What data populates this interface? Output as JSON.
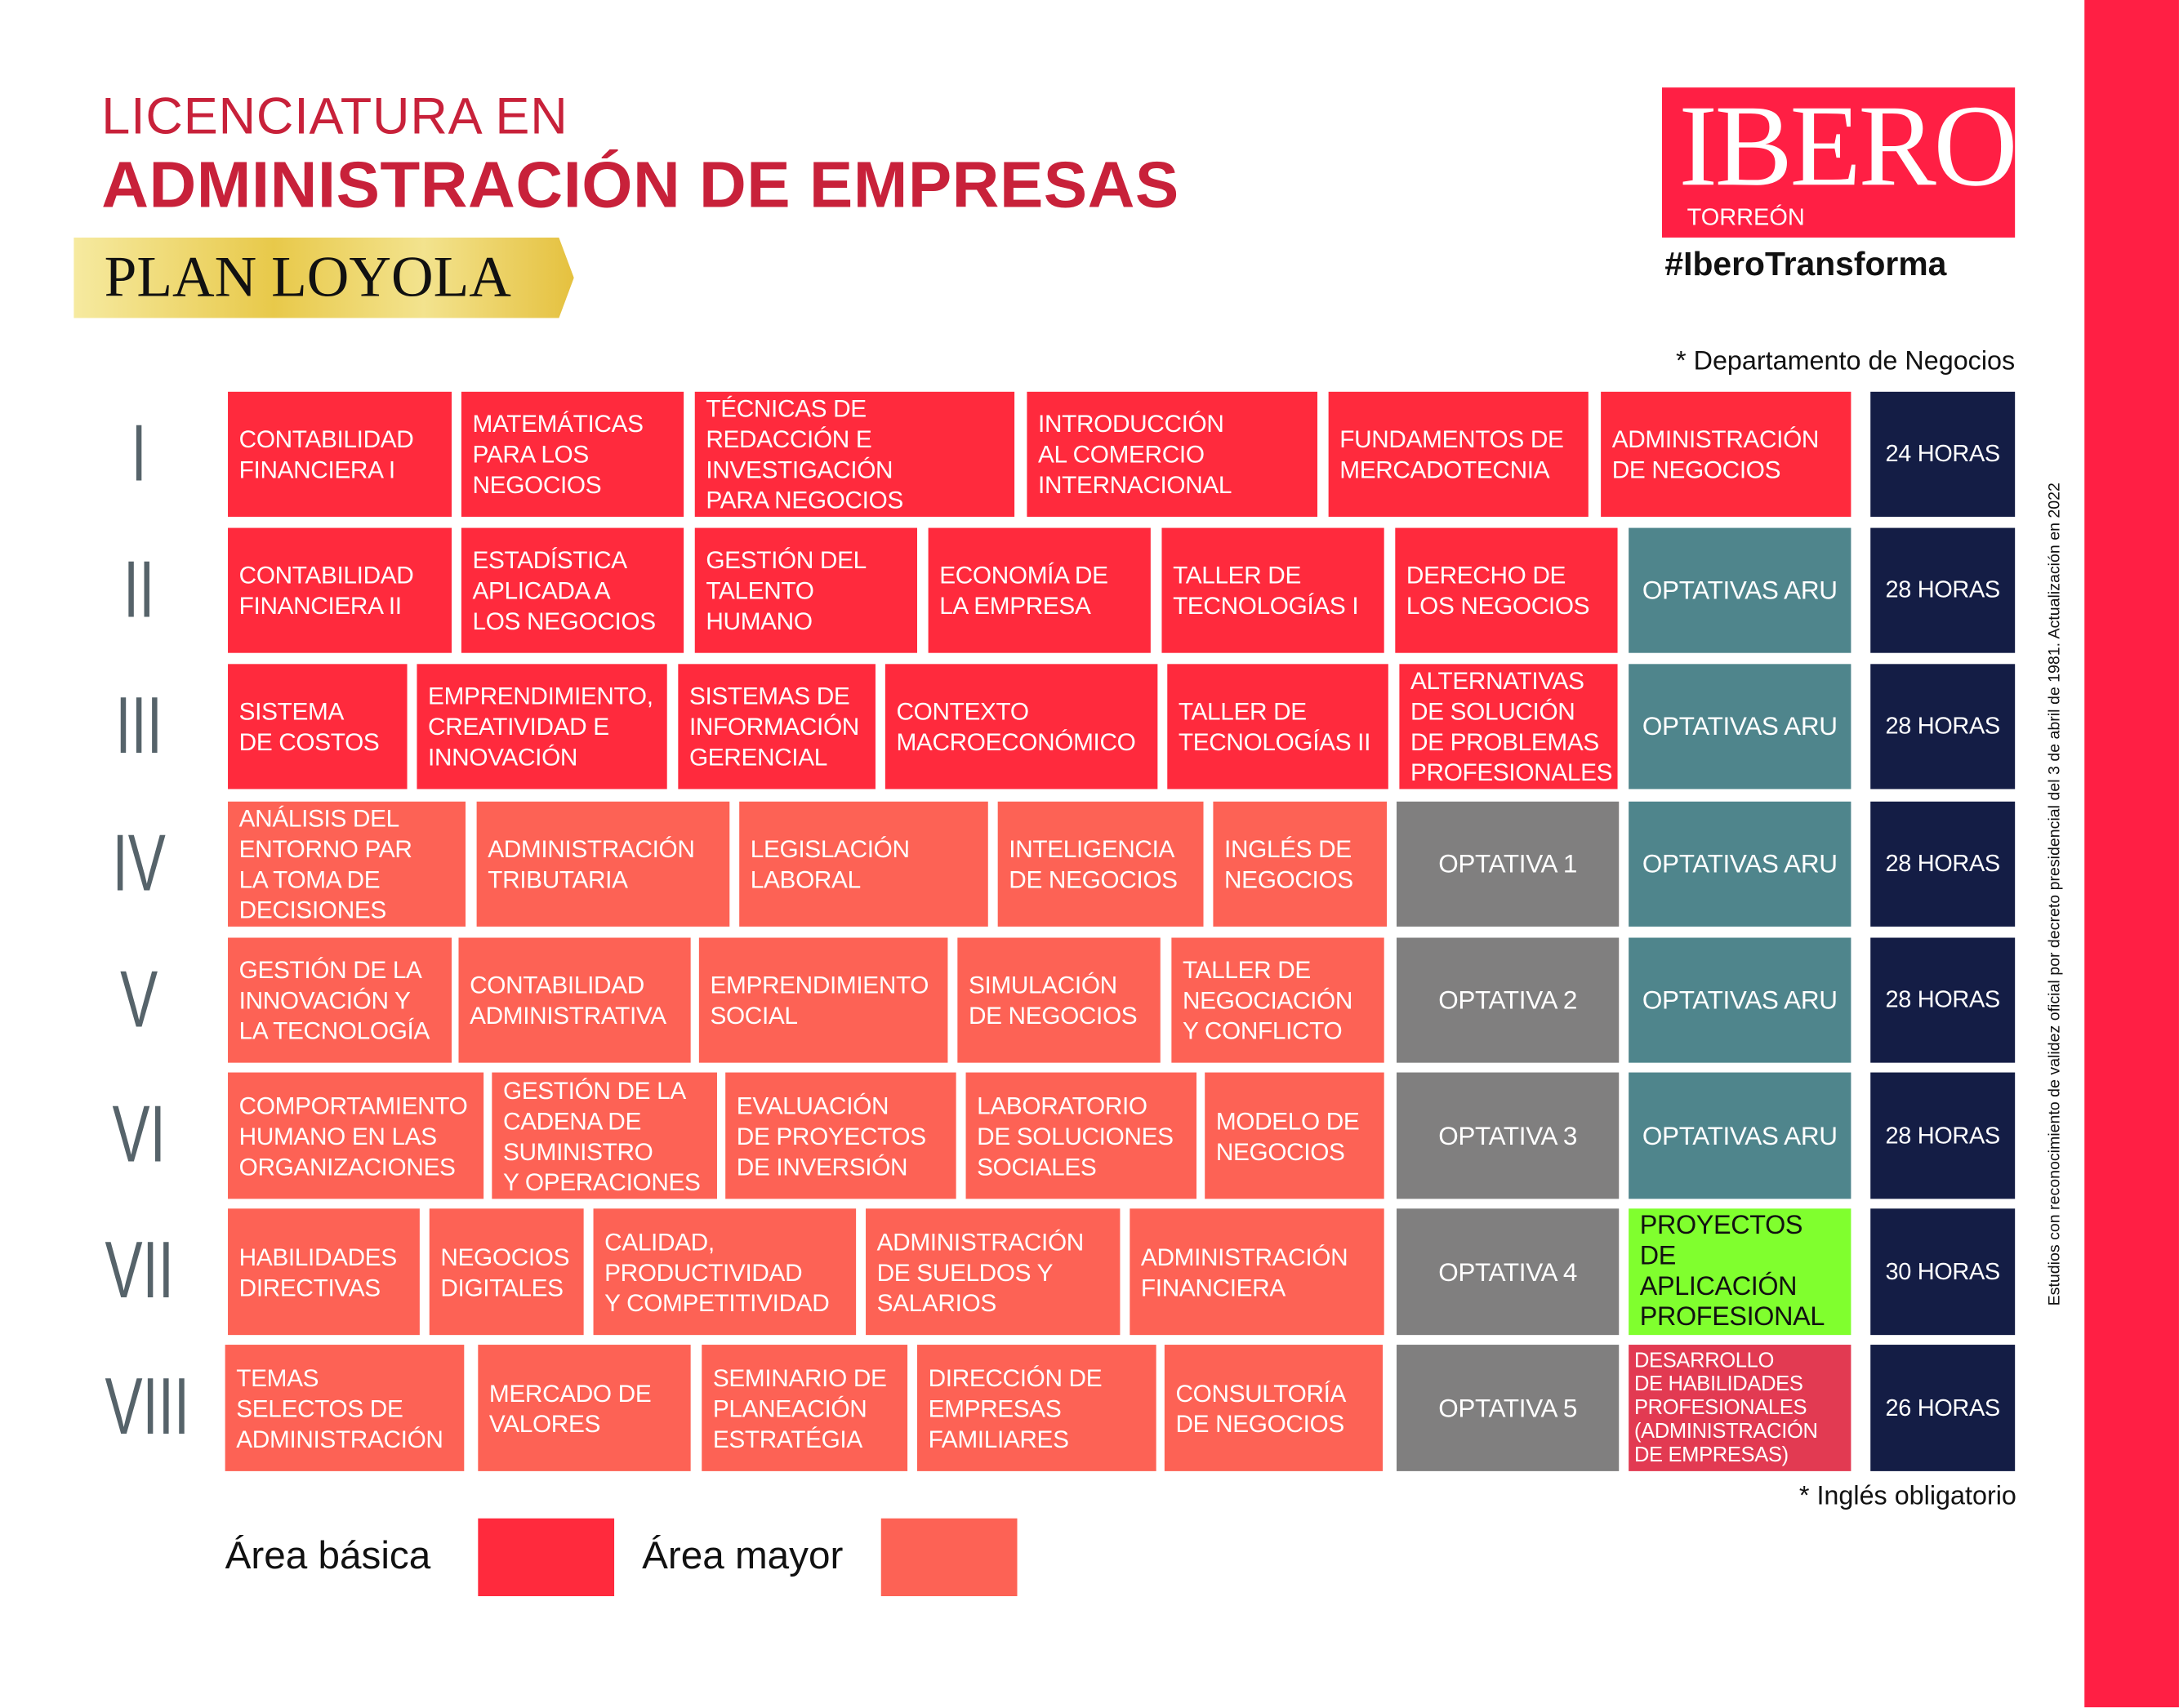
{
  "header": {
    "title_line1": "LICENCIATURA EN",
    "title_line2": "ADMINISTRACIÓN DE EMPRESAS",
    "plan": "PLAN LOYOLA",
    "logo_text": "IBERO",
    "logo_subtext": "TORREÓN",
    "hashtag": "#IberoTransforma"
  },
  "notes": {
    "department": "* Departamento de Negocios",
    "english": "* Inglés obligatorio",
    "validity": "Estudios con reconocimiento de validez oficial por decreto presidencial del 3 de abril de 1981. Actualización en 2022"
  },
  "colors": {
    "basic": "#ff2a3d",
    "major": "#fd6255",
    "optativa": "#807f7f",
    "aru": "#4f858c",
    "hours": "#141d45",
    "project": "#80ff2e",
    "development": "#e23a52",
    "numeral": "#56636a",
    "brand": "#ff1f44"
  },
  "rows": [
    {
      "numeral": "I",
      "hours": "24 HORAS",
      "courses": [
        {
          "label": "CONTABILIDAD\nFINANCIERA I",
          "area": "basic"
        },
        {
          "label": "MATEMÁTICAS\nPARA LOS\nNEGOCIOS",
          "area": "basic"
        },
        {
          "label": "TÉCNICAS DE\nREDACCIÓN E\nINVESTIGACIÓN\nPARA NEGOCIOS",
          "area": "basic"
        },
        {
          "label": "INTRODUCCIÓN\nAL COMERCIO\nINTERNACIONAL",
          "area": "basic"
        },
        {
          "label": "FUNDAMENTOS DE\nMERCADOTECNIA",
          "area": "basic"
        },
        {
          "label": "ADMINISTRACIÓN\nDE NEGOCIOS",
          "area": "basic"
        }
      ]
    },
    {
      "numeral": "II",
      "hours": "28 HORAS",
      "courses": [
        {
          "label": "CONTABILIDAD\nFINANCIERA II",
          "area": "basic"
        },
        {
          "label": "ESTADÍSTICA\nAPLICADA A\nLOS NEGOCIOS",
          "area": "basic"
        },
        {
          "label": "GESTIÓN DEL\nTALENTO\nHUMANO",
          "area": "basic"
        },
        {
          "label": "ECONOMÍA DE\nLA EMPRESA",
          "area": "basic"
        },
        {
          "label": "TALLER DE\nTECNOLOGÍAS I",
          "area": "basic"
        },
        {
          "label": "DERECHO DE\nLOS NEGOCIOS",
          "area": "basic"
        },
        {
          "label": "OPTATIVAS ARU",
          "area": "aru"
        }
      ]
    },
    {
      "numeral": "III",
      "hours": "28 HORAS",
      "courses": [
        {
          "label": "SISTEMA\nDE COSTOS",
          "area": "basic"
        },
        {
          "label": "EMPRENDIMIENTO,\nCREATIVIDAD E\nINNOVACIÓN",
          "area": "basic"
        },
        {
          "label": "SISTEMAS DE\nINFORMACIÓN\nGERENCIAL",
          "area": "basic"
        },
        {
          "label": "CONTEXTO\nMACROECONÓMICO",
          "area": "basic"
        },
        {
          "label": "TALLER DE\nTECNOLOGÍAS II",
          "area": "basic"
        },
        {
          "label": "ALTERNATIVAS\nDE SOLUCIÓN\nDE PROBLEMAS\nPROFESIONALES",
          "area": "basic"
        },
        {
          "label": "OPTATIVAS ARU",
          "area": "aru"
        }
      ]
    },
    {
      "numeral": "IV",
      "hours": "28 HORAS",
      "courses": [
        {
          "label": "ANÁLISIS DEL\nENTORNO PAR\n LA TOMA DE\nDECISIONES",
          "area": "major"
        },
        {
          "label": "ADMINISTRACIÓN\nTRIBUTARIA",
          "area": "major"
        },
        {
          "label": "LEGISLACIÓN\nLABORAL",
          "area": "major"
        },
        {
          "label": "INTELIGENCIA\nDE NEGOCIOS",
          "area": "major"
        },
        {
          "label": "INGLÉS DE\nNEGOCIOS",
          "area": "major"
        },
        {
          "label": "OPTATIVA 1",
          "area": "optativa"
        },
        {
          "label": "OPTATIVAS ARU",
          "area": "aru"
        }
      ]
    },
    {
      "numeral": "V",
      "hours": "28 HORAS",
      "courses": [
        {
          "label": "GESTIÓN DE LA\nINNOVACIÓN Y\nLA TECNOLOGÍA",
          "area": "major"
        },
        {
          "label": "CONTABILIDAD\nADMINISTRATIVA",
          "area": "major"
        },
        {
          "label": "EMPRENDIMIENTO\nSOCIAL",
          "area": "major"
        },
        {
          "label": "SIMULACIÓN\nDE NEGOCIOS",
          "area": "major"
        },
        {
          "label": "TALLER DE\nNEGOCIACIÓN\nY CONFLICTO",
          "area": "major"
        },
        {
          "label": "OPTATIVA 2",
          "area": "optativa"
        },
        {
          "label": "OPTATIVAS ARU",
          "area": "aru"
        }
      ]
    },
    {
      "numeral": "VI",
      "hours": "28 HORAS",
      "courses": [
        {
          "label": "COMPORTAMIENTO\nHUMANO EN LAS\nORGANIZACIONES",
          "area": "major"
        },
        {
          "label": "GESTIÓN DE LA\nCADENA DE\nSUMINISTRO\nY OPERACIONES",
          "area": "major"
        },
        {
          "label": "EVALUACIÓN\nDE PROYECTOS\nDE INVERSIÓN",
          "area": "major"
        },
        {
          "label": "LABORATORIO\nDE SOLUCIONES\nSOCIALES",
          "area": "major"
        },
        {
          "label": "MODELO DE\nNEGOCIOS",
          "area": "major"
        },
        {
          "label": "OPTATIVA 3",
          "area": "optativa"
        },
        {
          "label": "OPTATIVAS ARU",
          "area": "aru"
        }
      ]
    },
    {
      "numeral": "VII",
      "hours": "30 HORAS",
      "courses": [
        {
          "label": "HABILIDADES\nDIRECTIVAS",
          "area": "major"
        },
        {
          "label": "NEGOCIOS\nDIGITALES",
          "area": "major"
        },
        {
          "label": "CALIDAD,\nPRODUCTIVIDAD\nY COMPETITIVIDAD",
          "area": "major"
        },
        {
          "label": "ADMINISTRACIÓN\nDE SUELDOS Y\nSALARIOS",
          "area": "major"
        },
        {
          "label": "ADMINISTRACIÓN\nFINANCIERA",
          "area": "major"
        },
        {
          "label": "OPTATIVA 4",
          "area": "optativa"
        },
        {
          "label": "PROYECTOS DE\nAPLICACIÓN\nPROFESIONAL",
          "area": "project"
        }
      ]
    },
    {
      "numeral": "VIII",
      "hours": "26 HORAS",
      "courses": [
        {
          "label": "TEMAS\nSELECTOS DE\nADMINISTRACIÓN",
          "area": "major"
        },
        {
          "label": "MERCADO DE\nVALORES",
          "area": "major"
        },
        {
          "label": "SEMINARIO DE\nPLANEACIÓN\nESTRATÉGIA",
          "area": "major"
        },
        {
          "label": "DIRECCIÓN DE\nEMPRESAS\nFAMILIARES",
          "area": "major"
        },
        {
          "label": "CONSULTORÍA\nDE NEGOCIOS",
          "area": "major"
        },
        {
          "label": "OPTATIVA 5",
          "area": "optativa"
        },
        {
          "label": "DESARROLLO\nDE HABILIDADES\nPROFESIONALES\n(ADMINISTRACIÓN\nDE EMPRESAS)",
          "area": "development"
        }
      ]
    }
  ],
  "legend": [
    {
      "label": "Área básica",
      "area": "basic"
    },
    {
      "label": "Área mayor",
      "area": "major"
    }
  ]
}
